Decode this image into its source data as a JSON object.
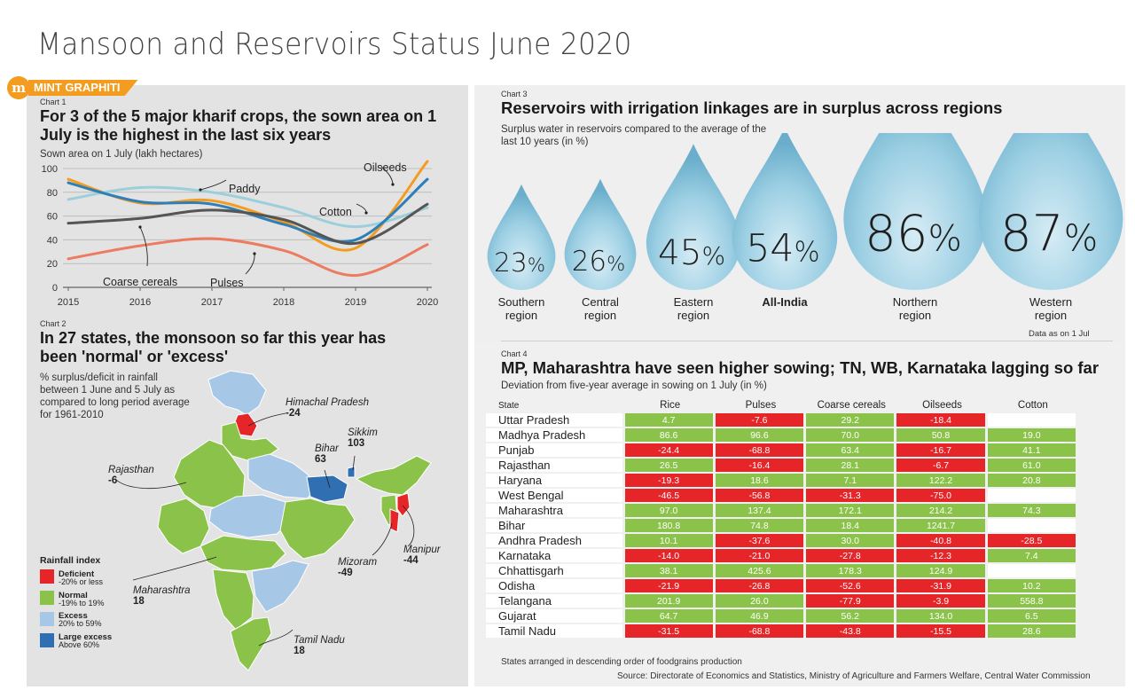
{
  "page_title": "Mansoon and Reservoirs Status June 2020",
  "brand": {
    "logo": "m",
    "tag": "MINT GRAPHITI"
  },
  "chart_data": [
    {
      "type": "line",
      "label": "Chart 1",
      "title": "For 3 of the 5 major kharif crops, the sown area on 1 July is the highest in the last six years",
      "subtitle": "Sown area on 1 July (lakh hectares)",
      "x": [
        2015,
        2016,
        2017,
        2018,
        2019,
        2020
      ],
      "ylim": [
        0,
        100
      ],
      "yticks": [
        0,
        20,
        40,
        60,
        80,
        100
      ],
      "grid": true,
      "series": [
        {
          "name": "Oilseeds",
          "color": "#f39c1f",
          "values": [
            91,
            71,
            73,
            55,
            33,
            106
          ]
        },
        {
          "name": "Paddy",
          "color": "#9ccfdc",
          "values": [
            74,
            84,
            80,
            67,
            51,
            67
          ]
        },
        {
          "name": "Cotton",
          "color": "#2e7fb8",
          "values": [
            88,
            72,
            70,
            53,
            40,
            91
          ]
        },
        {
          "name": "Coarse cereals",
          "color": "#555555",
          "values": [
            54,
            58,
            65,
            57,
            37,
            70
          ]
        },
        {
          "name": "Pulses",
          "color": "#ec7b5f",
          "values": [
            24,
            35,
            41,
            31,
            10,
            36
          ]
        }
      ]
    },
    {
      "type": "map",
      "label": "Chart 2",
      "title": "In 27 states, the monsoon so far this year has been 'normal' or 'excess'",
      "subtitle": "% surplus/deficit in rainfall between 1 June and 5 July as compared to long period average for 1961-2010",
      "legend_title": "Rainfall index",
      "legend": [
        {
          "name": "Deficient",
          "range": "-20% or less",
          "color": "#e52528"
        },
        {
          "name": "Normal",
          "range": "-19% to 19%",
          "color": "#8bc34a"
        },
        {
          "name": "Excess",
          "range": "20% to 59%",
          "color": "#a7c7e7"
        },
        {
          "name": "Large excess",
          "range": "Above 60%",
          "color": "#2f6fb2"
        }
      ],
      "callouts": [
        {
          "state": "Himachal Pradesh",
          "value": "-24"
        },
        {
          "state": "Sikkim",
          "value": "103"
        },
        {
          "state": "Bihar",
          "value": "63"
        },
        {
          "state": "Rajasthan",
          "value": "-6"
        },
        {
          "state": "Manipur",
          "value": "-44"
        },
        {
          "state": "Mizoram",
          "value": "-49"
        },
        {
          "state": "Maharashtra",
          "value": "18"
        },
        {
          "state": "Tamil Nadu",
          "value": "18"
        }
      ]
    },
    {
      "type": "bar",
      "label": "Chart 3",
      "title": "Reservoirs with irrigation linkages are in surplus across regions",
      "subtitle": "Surplus water in reservoirs compared to the average of the last 10 years (in %)",
      "note": "Data as on 1 Jul",
      "categories": [
        "Southern region",
        "Central region",
        "Eastern region",
        "All-India",
        "Northern region",
        "Western region"
      ],
      "values": [
        23,
        26,
        45,
        54,
        86,
        87
      ],
      "value_labels": [
        "23",
        "26",
        "45",
        "54",
        "86",
        "87"
      ],
      "unit": "%"
    },
    {
      "type": "table",
      "label": "Chart 4",
      "title": "MP, Maharashtra have seen higher sowing; TN, WB, Karnataka lagging so far",
      "subtitle": "Deviation from five-year average in sowing on 1 July (in %)",
      "columns": [
        "State",
        "Rice",
        "Pulses",
        "Coarse cereals",
        "Oilseeds",
        "Cotton"
      ],
      "rows": [
        [
          "Uttar Pradesh",
          "4.7",
          "-7.6",
          "29.2",
          "-18.4",
          ""
        ],
        [
          "Madhya Pradesh",
          "86.6",
          "96.6",
          "70.0",
          "50.8",
          "19.0"
        ],
        [
          "Punjab",
          "-24.4",
          "-68.8",
          "63.4",
          "-16.7",
          "41.1"
        ],
        [
          "Rajasthan",
          "26.5",
          "-16.4",
          "28.1",
          "-6.7",
          "61.0"
        ],
        [
          "Haryana",
          "-19.3",
          "18.6",
          "7.1",
          "122.2",
          "20.8"
        ],
        [
          "West Bengal",
          "-46.5",
          "-56.8",
          "-31.3",
          "-75.0",
          ""
        ],
        [
          "Maharashtra",
          "97.0",
          "137.4",
          "172.1",
          "214.2",
          "74.3"
        ],
        [
          "Bihar",
          "180.8",
          "74.8",
          "18.4",
          "1241.7",
          ""
        ],
        [
          "Andhra Pradesh",
          "10.1",
          "-37.6",
          "30.0",
          "-40.8",
          "-28.5"
        ],
        [
          "Karnataka",
          "-14.0",
          "-21.0",
          "-27.8",
          "-12.3",
          "7.4"
        ],
        [
          "Chhattisgarh",
          "38.1",
          "425.6",
          "178.3",
          "124.9",
          ""
        ],
        [
          "Odisha",
          "-21.9",
          "-26.8",
          "-52.6",
          "-31.9",
          "10.2"
        ],
        [
          "Telangana",
          "201.9",
          "26.0",
          "-77.9",
          "-3.9",
          "558.8"
        ],
        [
          "Gujarat",
          "64.7",
          "46.9",
          "56.2",
          "134.0",
          "6.5"
        ],
        [
          "Tamil Nadu",
          "-31.5",
          "-68.8",
          "-43.8",
          "-15.5",
          "28.6"
        ]
      ],
      "note": "States arranged in descending order of foodgrains production",
      "source": "Source: Directorate of Economics and Statistics, Ministry of Agriculture and Farmers Welfare, Central Water Commission"
    }
  ],
  "colors": {
    "positive": "#8bc34a",
    "negative": "#e52528",
    "drop": "#7fbcd6",
    "accent": "#f39c1f"
  }
}
